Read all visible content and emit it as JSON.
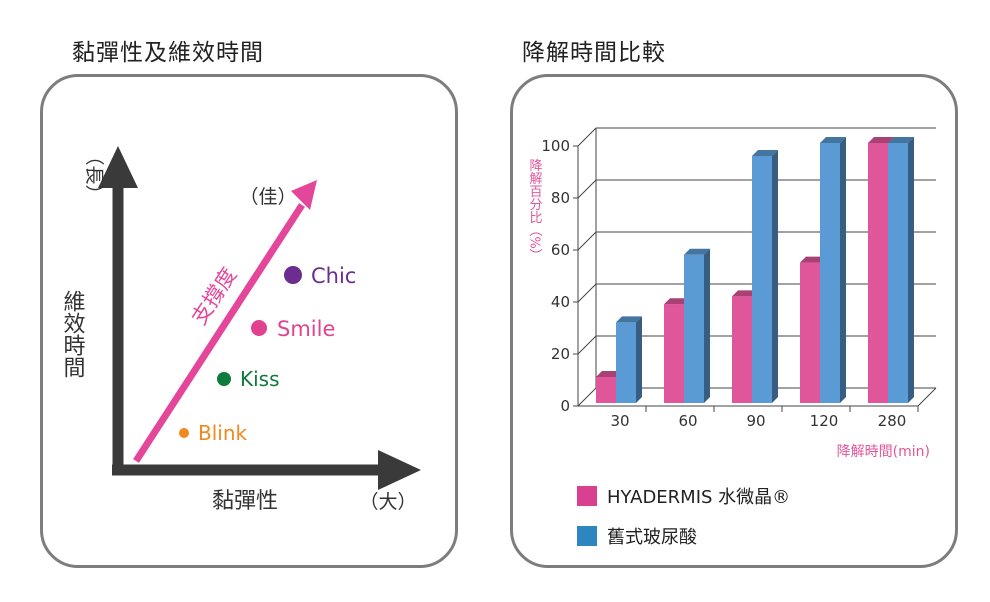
{
  "left_panel": {
    "title": "黏彈性及維效時間",
    "y_axis_top_label": "（長）",
    "y_axis_label": "維效時間",
    "x_axis_label": "黏彈性",
    "x_axis_end_label": "（大）",
    "arrow_label": "支撐度",
    "arrow_end_label": "（佳）",
    "products": [
      {
        "name": "Chic",
        "color": "#6b2d8f"
      },
      {
        "name": "Smile",
        "color": "#e0428f"
      },
      {
        "name": "Kiss",
        "color": "#0f7a3c"
      },
      {
        "name": "Blink",
        "color": "#f08a1e"
      }
    ],
    "colors": {
      "axis": "#3a3a3a",
      "arrow": "#e4479a"
    }
  },
  "chart_data": {
    "type": "bar",
    "title": "降解時間比較",
    "categories": [
      "30",
      "60",
      "90",
      "120",
      "280"
    ],
    "series": [
      {
        "name": "HYADERMIS 水微晶®",
        "values": [
          10,
          38,
          41,
          54,
          100
        ],
        "color": "#e0569b"
      },
      {
        "name": "舊式玻尿酸",
        "values": [
          31,
          57,
          95,
          100,
          100
        ],
        "color": "#5b9bd5"
      }
    ],
    "ylabel": "降解百分比（%）",
    "xlabel": "降解時間(min)",
    "ylim": [
      0,
      100
    ],
    "yticks": [
      0,
      20,
      40,
      60,
      80,
      100
    ],
    "grid": true,
    "legend_position": "bottom-left"
  }
}
